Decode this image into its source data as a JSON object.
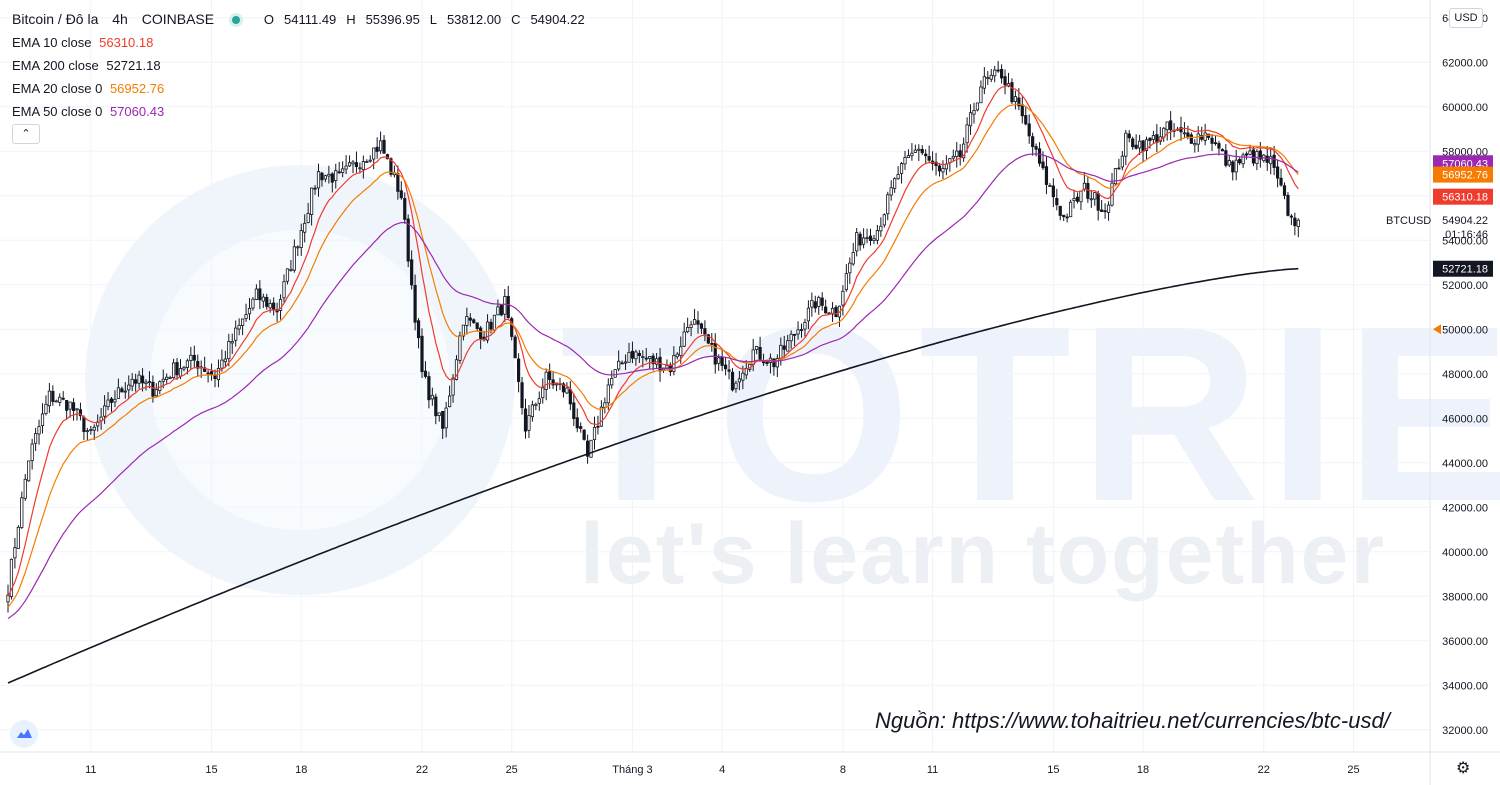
{
  "header": {
    "symbol": "Bitcoin / Đô la",
    "interval": "4h",
    "exchange": "COINBASE",
    "open_label": "O",
    "open": "54111.49",
    "high_label": "H",
    "high": "55396.95",
    "low_label": "L",
    "low": "53812.00",
    "close_label": "C",
    "close": "54904.22"
  },
  "indicators": [
    {
      "name": "EMA 10 close",
      "value": "56310.18",
      "color": "#ef3b2c"
    },
    {
      "name": "EMA 200 close",
      "value": "52721.18",
      "color": "#131722"
    },
    {
      "name": "EMA 20 close 0",
      "value": "56952.76",
      "color": "#f57c00"
    },
    {
      "name": "EMA 50 close 0",
      "value": "57060.43",
      "color": "#9c27b0"
    }
  ],
  "collapse_icon": "chevron-up-icon",
  "currency_button": "USD",
  "price_tag": {
    "symbol": "BTCUSD",
    "price": "54904.22",
    "countdown": "01:16:46"
  },
  "watermark_text": "let's learn together",
  "source_note": "Nguồn: https://www.tohaitrieu.net/currencies/btc-usd/",
  "chart_data": {
    "type": "candlestick",
    "title": "Bitcoin / Đô la, 4h, COINBASE",
    "xlabel": "",
    "ylabel": "",
    "x_tick_labels": [
      "11",
      "15",
      "18",
      "22",
      "25",
      "Tháng 3",
      "4",
      "8",
      "11",
      "15",
      "18",
      "22",
      "25"
    ],
    "y_tick_labels": [
      "64000.00",
      "62000.00",
      "60000.00",
      "58000.00",
      "56000.00",
      "54000.00",
      "52000.00",
      "50000.00",
      "48000.00",
      "46000.00",
      "44000.00",
      "42000.00",
      "40000.00",
      "38000.00",
      "36000.00",
      "34000.00",
      "32000.00"
    ],
    "ylim": [
      31000,
      64800
    ],
    "grid": true,
    "up_color": "#ffffff",
    "down_color": "#131722",
    "price_series_approx": [
      [
        0,
        38400
      ],
      [
        6,
        44200
      ],
      [
        12,
        47000
      ],
      [
        18,
        46600
      ],
      [
        24,
        45200
      ],
      [
        30,
        46800
      ],
      [
        36,
        47800
      ],
      [
        42,
        47300
      ],
      [
        48,
        48200
      ],
      [
        54,
        48600
      ],
      [
        60,
        47900
      ],
      [
        66,
        49800
      ],
      [
        72,
        51500
      ],
      [
        78,
        50900
      ],
      [
        84,
        54000
      ],
      [
        90,
        57000
      ],
      [
        96,
        56800
      ],
      [
        102,
        57600
      ],
      [
        108,
        58300
      ],
      [
        114,
        56000
      ],
      [
        120,
        48000
      ],
      [
        126,
        45500
      ],
      [
        132,
        50500
      ],
      [
        138,
        49800
      ],
      [
        144,
        51200
      ],
      [
        150,
        45600
      ],
      [
        156,
        47800
      ],
      [
        162,
        47200
      ],
      [
        168,
        44200
      ],
      [
        174,
        47500
      ],
      [
        180,
        49000
      ],
      [
        186,
        48600
      ],
      [
        192,
        48300
      ],
      [
        198,
        50500
      ],
      [
        204,
        49000
      ],
      [
        210,
        47600
      ],
      [
        216,
        49000
      ],
      [
        222,
        48500
      ],
      [
        228,
        49800
      ],
      [
        234,
        51200
      ],
      [
        240,
        50800
      ],
      [
        246,
        54000
      ],
      [
        252,
        54500
      ],
      [
        258,
        57000
      ],
      [
        264,
        58200
      ],
      [
        270,
        57000
      ],
      [
        276,
        57800
      ],
      [
        282,
        61000
      ],
      [
        288,
        61500
      ],
      [
        294,
        59500
      ],
      [
        300,
        57000
      ],
      [
        306,
        55000
      ],
      [
        312,
        56300
      ],
      [
        318,
        55400
      ],
      [
        324,
        58500
      ],
      [
        330,
        58300
      ],
      [
        336,
        59000
      ],
      [
        342,
        58600
      ],
      [
        348,
        58800
      ],
      [
        354,
        57300
      ],
      [
        360,
        57800
      ],
      [
        366,
        57500
      ],
      [
        372,
        54900
      ]
    ],
    "series": [
      {
        "name": "EMA 10 close",
        "last": 56310.18
      },
      {
        "name": "EMA 200 close",
        "last": 52721.18
      },
      {
        "name": "EMA 20 close 0",
        "last": 56952.76
      },
      {
        "name": "EMA 50 close 0",
        "last": 57060.43
      }
    ],
    "current_price": 54904.22,
    "alert_level": 50000
  }
}
